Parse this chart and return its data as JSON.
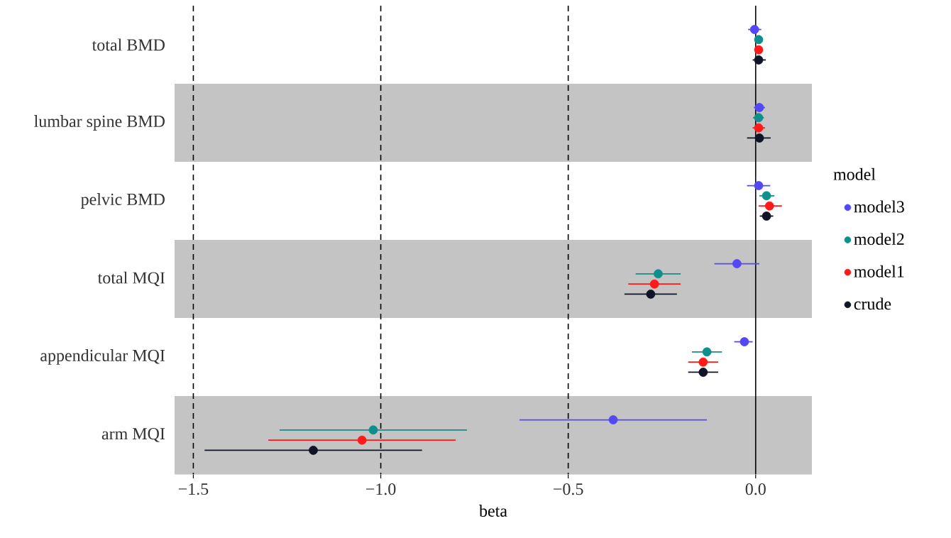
{
  "chart_data": {
    "type": "scatter",
    "orientation": "horizontal",
    "xlabel": "beta",
    "legend_title": "model",
    "legend": "right",
    "marker": "circle",
    "categories": [
      "total BMD",
      "lumbar spine BMD",
      "pelvic BMD",
      "total MQI",
      "appendicular MQI",
      "arm MQI"
    ],
    "xlim": [
      -1.55,
      0.15
    ],
    "xticks": [
      {
        "value": -1.5,
        "label": "−1.5"
      },
      {
        "value": -1,
        "label": "−1.0"
      },
      {
        "value": -0.5,
        "label": "−0.5"
      },
      {
        "value": 0,
        "label": "0.0"
      }
    ],
    "series": [
      {
        "name": "model3",
        "color": "#5447f5",
        "values": [
          -0.003,
          0.01,
          0.008,
          -0.05,
          -0.03,
          -0.38
        ],
        "errors": [
          [
            -0.02,
            0.015
          ],
          [
            -0.005,
            0.025
          ],
          [
            -0.023,
            0.039
          ],
          [
            -0.11,
            0.01
          ],
          [
            -0.057,
            -0.008
          ],
          [
            -0.63,
            -0.13
          ]
        ]
      },
      {
        "name": "model2",
        "color": "#0f8f8c",
        "values": [
          0.008,
          0.008,
          0.029,
          -0.26,
          -0.13,
          -1.02
        ],
        "errors": [
          [
            -0.002,
            0.018
          ],
          [
            -0.007,
            0.022
          ],
          [
            0.01,
            0.05
          ],
          [
            -0.32,
            -0.2
          ],
          [
            -0.17,
            -0.09
          ],
          [
            -1.27,
            -0.77
          ]
        ]
      },
      {
        "name": "model1",
        "color": "#ff1a1a",
        "values": [
          0.008,
          0.008,
          0.037,
          -0.27,
          -0.14,
          -1.05
        ],
        "errors": [
          [
            -0.002,
            0.018
          ],
          [
            -0.008,
            0.025
          ],
          [
            0.008,
            0.07
          ],
          [
            -0.34,
            -0.2
          ],
          [
            -0.18,
            -0.1
          ],
          [
            -1.3,
            -0.8
          ]
        ]
      },
      {
        "name": "crude",
        "color": "#0f1426",
        "values": [
          0.008,
          0.01,
          0.029,
          -0.28,
          -0.14,
          -1.18
        ],
        "errors": [
          [
            -0.008,
            0.027
          ],
          [
            -0.023,
            0.04
          ],
          [
            0.011,
            0.047
          ],
          [
            -0.35,
            -0.21
          ],
          [
            -0.18,
            -0.1
          ],
          [
            -1.47,
            -0.89
          ]
        ]
      }
    ],
    "bands": [
      {
        "axis": "y",
        "from": "lumbar spine BMD",
        "to": "lumbar spine BMD",
        "color": "#c4c4c4"
      },
      {
        "axis": "y",
        "from": "total MQI",
        "to": "total MQI",
        "color": "#c4c4c4"
      },
      {
        "axis": "y",
        "from": "arm MQI",
        "to": "arm MQI",
        "color": "#c4c4c4"
      }
    ],
    "ref_lines": [
      {
        "axis": "x",
        "value": -1.5,
        "line_style": "dashed"
      },
      {
        "axis": "x",
        "value": -1,
        "line_style": "dashed"
      },
      {
        "axis": "x",
        "value": -0.5,
        "line_style": "dashed"
      },
      {
        "axis": "x",
        "value": 0,
        "line_style": "solid"
      }
    ]
  }
}
